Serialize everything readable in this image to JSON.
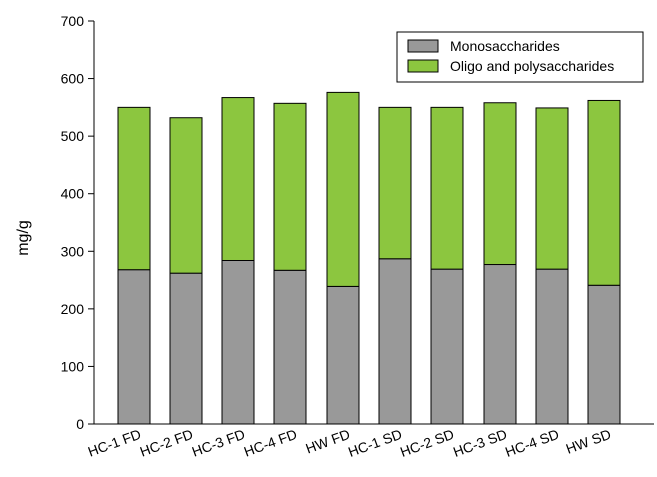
{
  "chart_data": {
    "type": "bar",
    "stacked": true,
    "title": "",
    "xlabel": "",
    "ylabel": "mg/g",
    "ylim": [
      0,
      700
    ],
    "yticks": [
      0,
      100,
      200,
      300,
      400,
      500,
      600,
      700
    ],
    "grid": false,
    "legend_position": "top-right",
    "categories": [
      "HC-1 FD",
      "HC-2 FD",
      "HC-3 FD",
      "HC-4 FD",
      "HW FD",
      "HC-1 SD",
      "HC-2 SD",
      "HC-3 SD",
      "HC-4 SD",
      "HW SD"
    ],
    "series": [
      {
        "name": "Monosaccharides",
        "color": "#999999",
        "values": [
          268,
          262,
          284,
          267,
          239,
          287,
          269,
          277,
          269,
          241
        ]
      },
      {
        "name": "Oligo and polysaccharides",
        "color": "#8cc63f",
        "values": [
          282,
          270,
          283,
          290,
          337,
          263,
          281,
          281,
          280,
          321
        ]
      }
    ]
  }
}
